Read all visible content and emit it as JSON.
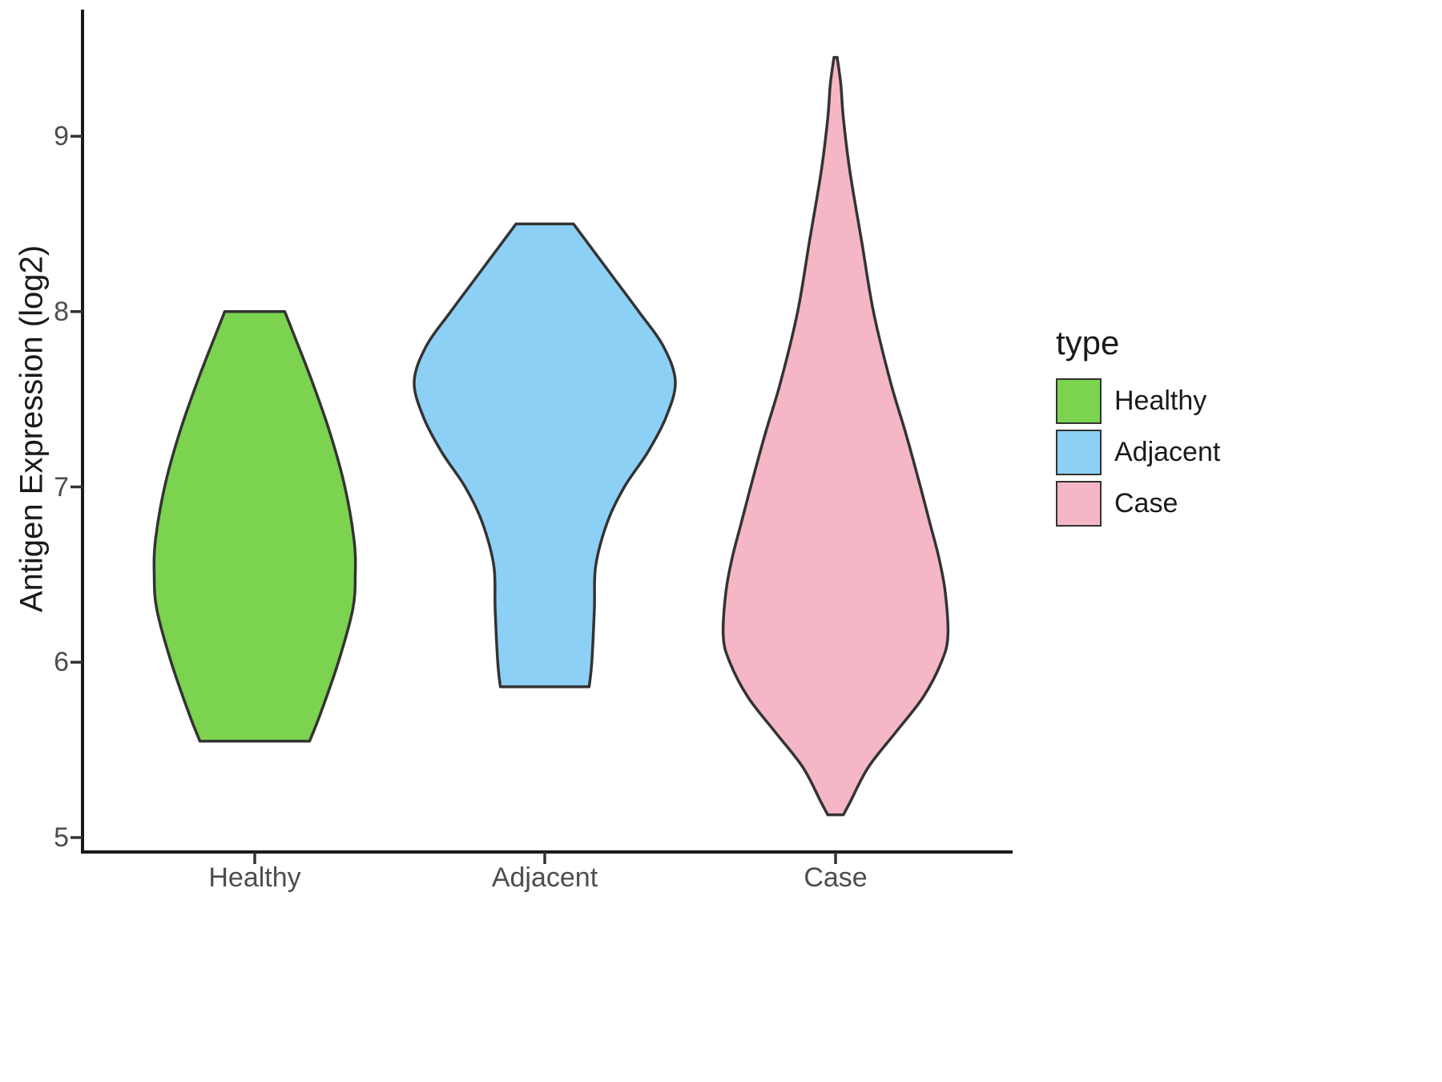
{
  "chart_data": {
    "type": "violin",
    "ylabel": "Antigen Expression (log2)",
    "yticks": [
      5,
      6,
      7,
      8,
      9
    ],
    "ylim": [
      5,
      9.6
    ],
    "categories": [
      "Healthy",
      "Adjacent",
      "Case"
    ],
    "grid": "off",
    "legend_position": "right",
    "axis_color": "#1a1a1a",
    "tick_color": "#333333",
    "tick_label_color": "#4d4d4d",
    "legend": {
      "title": "type",
      "entries": [
        {
          "label": "Healthy",
          "color": "#7cd34f"
        },
        {
          "label": "Adjacent",
          "color": "#8dd0f5"
        },
        {
          "label": "Case",
          "color": "#f5b7c5"
        }
      ]
    },
    "series": [
      {
        "name": "Healthy",
        "fill": "#7cd34f",
        "outline": "#333333",
        "value_range": [
          5.55,
          8.0
        ],
        "profile": [
          [
            5.55,
            0.42
          ],
          [
            5.7,
            0.5
          ],
          [
            6.0,
            0.64
          ],
          [
            6.3,
            0.75
          ],
          [
            6.5,
            0.77
          ],
          [
            6.7,
            0.76
          ],
          [
            7.0,
            0.69
          ],
          [
            7.3,
            0.58
          ],
          [
            7.6,
            0.44
          ],
          [
            7.85,
            0.31
          ],
          [
            8.0,
            0.23
          ]
        ]
      },
      {
        "name": "Adjacent",
        "fill": "#8dd0f5",
        "outline": "#333333",
        "value_range": [
          5.86,
          8.5
        ],
        "profile": [
          [
            5.86,
            0.34
          ],
          [
            6.0,
            0.36
          ],
          [
            6.3,
            0.38
          ],
          [
            6.55,
            0.39
          ],
          [
            6.8,
            0.48
          ],
          [
            7.0,
            0.61
          ],
          [
            7.2,
            0.79
          ],
          [
            7.4,
            0.93
          ],
          [
            7.6,
            1.0
          ],
          [
            7.8,
            0.91
          ],
          [
            8.0,
            0.72
          ],
          [
            8.2,
            0.52
          ],
          [
            8.35,
            0.37
          ],
          [
            8.5,
            0.22
          ]
        ]
      },
      {
        "name": "Case",
        "fill": "#f5b7c5",
        "outline": "#333333",
        "value_range": [
          5.13,
          9.45
        ],
        "profile": [
          [
            5.13,
            0.06
          ],
          [
            5.2,
            0.11
          ],
          [
            5.4,
            0.25
          ],
          [
            5.6,
            0.46
          ],
          [
            5.8,
            0.67
          ],
          [
            6.0,
            0.81
          ],
          [
            6.15,
            0.86
          ],
          [
            6.4,
            0.84
          ],
          [
            6.6,
            0.79
          ],
          [
            6.8,
            0.72
          ],
          [
            7.0,
            0.65
          ],
          [
            7.3,
            0.54
          ],
          [
            7.6,
            0.42
          ],
          [
            8.0,
            0.29
          ],
          [
            8.4,
            0.2
          ],
          [
            8.8,
            0.11
          ],
          [
            9.1,
            0.06
          ],
          [
            9.3,
            0.04
          ],
          [
            9.45,
            0.012
          ]
        ]
      }
    ]
  }
}
